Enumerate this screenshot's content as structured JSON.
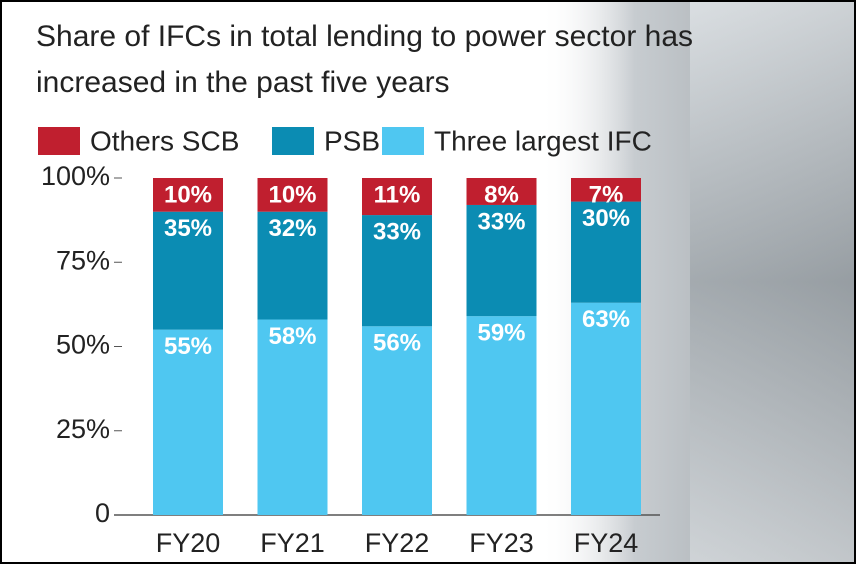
{
  "chart_data": {
    "type": "stacked_bar",
    "title": "Share of IFCs in total lending to power sector has increased in the past five years",
    "categories": [
      "FY20",
      "FY21",
      "FY22",
      "FY23",
      "FY24"
    ],
    "series": [
      {
        "name": "Others SCB",
        "color": "#c01f2f",
        "values": [
          10,
          10,
          11,
          8,
          7
        ],
        "value_labels": [
          "10%",
          "10%",
          "11%",
          "8%",
          "7%"
        ]
      },
      {
        "name": "PSB",
        "color": "#0b8cb3",
        "values": [
          35,
          32,
          33,
          33,
          30
        ],
        "value_labels": [
          "35%",
          "32%",
          "33%",
          "33%",
          "30%"
        ]
      },
      {
        "name": "Three largest IFC",
        "color": "#4fc7f1",
        "values": [
          55,
          58,
          56,
          59,
          63
        ],
        "value_labels": [
          "55%",
          "58%",
          "56%",
          "59%",
          "63%"
        ]
      }
    ],
    "ylim": [
      0,
      100
    ],
    "yticks": [
      0,
      {
        "value": 25,
        "label": "25%"
      },
      {
        "value": 50,
        "label": "50%"
      },
      {
        "value": 75,
        "label": "75%"
      },
      {
        "value": 100,
        "label": "100%"
      }
    ]
  }
}
